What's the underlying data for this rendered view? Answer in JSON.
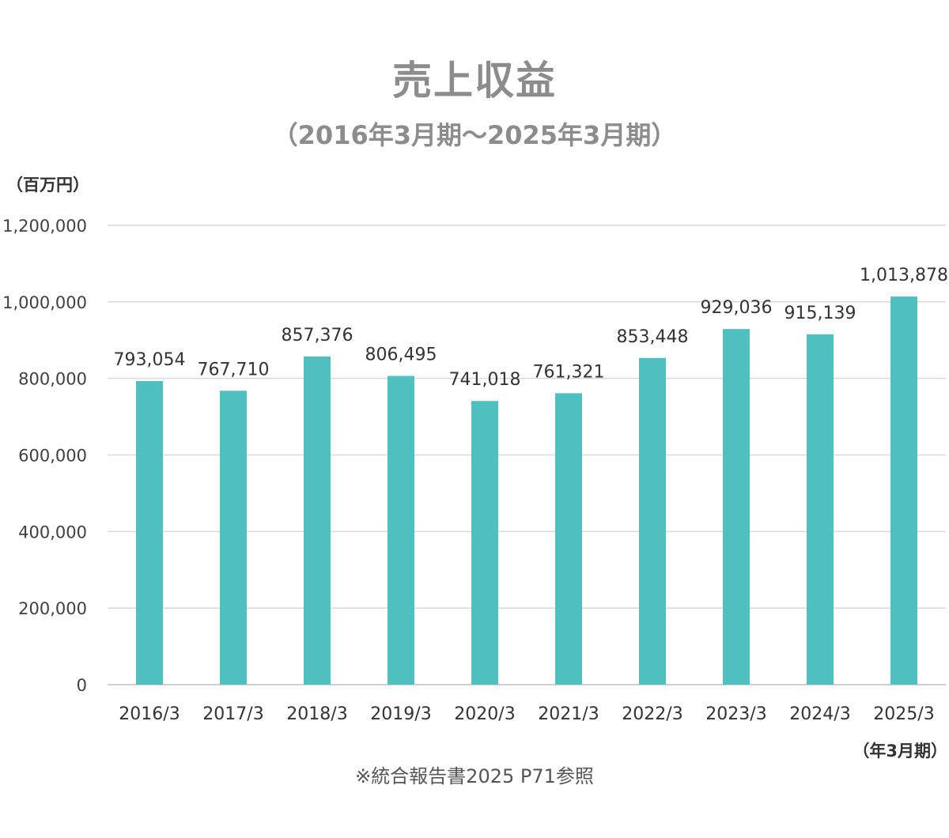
{
  "chart_data": {
    "type": "bar",
    "title": "売上収益",
    "subtitle": "（2016年3月期～2025年3月期）",
    "ylabel": "（百万円）",
    "xlabel": "（年3月期）",
    "categories": [
      "2016/3",
      "2017/3",
      "2018/3",
      "2019/3",
      "2020/3",
      "2021/3",
      "2022/3",
      "2023/3",
      "2024/3",
      "2025/3"
    ],
    "values": [
      793054,
      767710,
      857376,
      806495,
      741018,
      761321,
      853448,
      929036,
      915139,
      1013878
    ],
    "data_labels": [
      "793,054",
      "767,710",
      "857,376",
      "806,495",
      "741,018",
      "761,321",
      "853,448",
      "929,036",
      "915,139",
      "1,013,878"
    ],
    "ylim": [
      0,
      1200000
    ],
    "yticks": [
      0,
      200000,
      400000,
      600000,
      800000,
      1000000,
      1200000
    ],
    "ytick_labels": [
      "0",
      "200,000",
      "400,000",
      "600,000",
      "800,000",
      "1,000,000",
      "1,200,000"
    ],
    "grid": true,
    "bar_color": "#4fbfbf"
  },
  "note": "※統合報告書2025 P71参照"
}
